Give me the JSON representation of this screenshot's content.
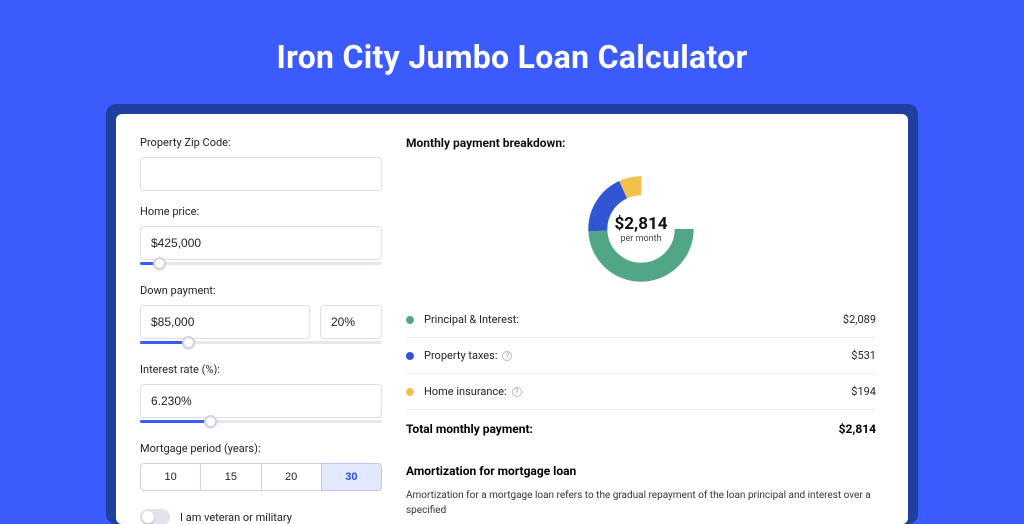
{
  "page": {
    "title": "Iron City Jumbo Loan Calculator"
  },
  "form": {
    "zip": {
      "label": "Property Zip Code:",
      "value": ""
    },
    "price": {
      "label": "Home price:",
      "value": "$425,000",
      "slider_pct": 8
    },
    "down": {
      "label": "Down payment:",
      "amount": "$85,000",
      "pct": "20%",
      "slider_pct": 20
    },
    "rate": {
      "label": "Interest rate (%):",
      "value": "6.230%",
      "slider_pct": 29
    },
    "period": {
      "label": "Mortgage period (years):",
      "options": [
        "10",
        "15",
        "20",
        "30"
      ],
      "selected": "30"
    },
    "veteran": {
      "label": "I am veteran or military",
      "on": false
    }
  },
  "breakdown": {
    "title": "Monthly payment breakdown:",
    "donut": {
      "value": "$2,814",
      "sub": "per month",
      "slices": [
        {
          "color": "#52a686",
          "pct": 74.2
        },
        {
          "color": "#3056d3",
          "pct": 18.9
        },
        {
          "color": "#f3c04b",
          "pct": 6.9
        }
      ]
    },
    "items": [
      {
        "label": "Principal & Interest:",
        "color": "#52a686",
        "value": "$2,089",
        "info": false
      },
      {
        "label": "Property taxes:",
        "color": "#3056d3",
        "value": "$531",
        "info": true
      },
      {
        "label": "Home insurance:",
        "color": "#f3c04b",
        "value": "$194",
        "info": true
      }
    ],
    "total": {
      "label": "Total monthly payment:",
      "value": "$2,814"
    }
  },
  "amort": {
    "title": "Amortization for mortgage loan",
    "text": "Amortization for a mortgage loan refers to the gradual repayment of the loan principal and interest over a specified"
  },
  "colors": {
    "bg": "#3b5bfd",
    "panel": "#1e3fa0"
  }
}
